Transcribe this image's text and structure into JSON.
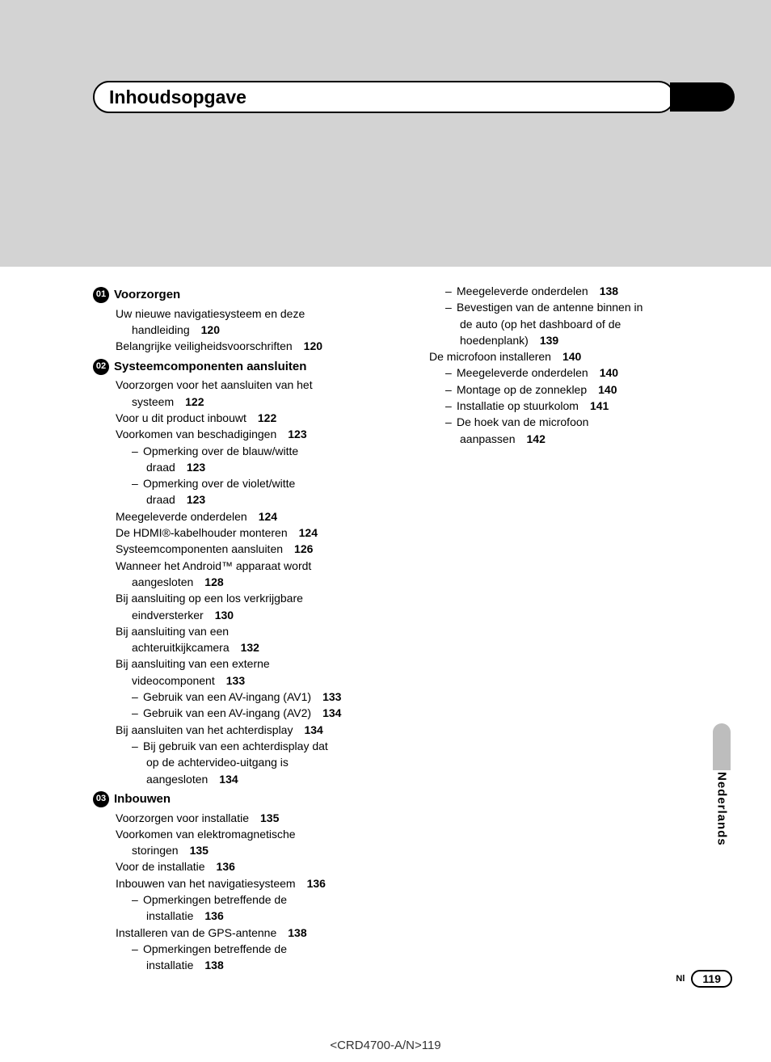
{
  "title": "Inhoudsopgave",
  "side_label": "Nederlands",
  "footer_lang": "Nl",
  "footer_page": "119",
  "doc_ref": "<CRD4700-A/N>119",
  "sections": [
    {
      "num": "01",
      "title": "Voorzorgen",
      "items": [
        {
          "t": "Uw nieuwe navigatiesysteem en deze",
          "cont": "handleiding",
          "p": "120"
        },
        {
          "t": "Belangrijke veiligheidsvoorschriften",
          "p": "120"
        }
      ]
    },
    {
      "num": "02",
      "title": "Systeemcomponenten aansluiten",
      "items": [
        {
          "t": "Voorzorgen voor het aansluiten van het",
          "cont": "systeem",
          "p": "122"
        },
        {
          "t": "Voor u dit product inbouwt",
          "p": "122"
        },
        {
          "t": "Voorkomen van beschadigingen",
          "p": "123"
        },
        {
          "sub": true,
          "t": "Opmerking over de blauw/witte",
          "cont": "draad",
          "p": "123"
        },
        {
          "sub": true,
          "t": "Opmerking over de violet/witte",
          "cont": "draad",
          "p": "123"
        },
        {
          "t": "Meegeleverde onderdelen",
          "p": "124"
        },
        {
          "t": "De HDMI®-kabelhouder monteren",
          "p": "124"
        },
        {
          "t": "Systeemcomponenten aansluiten",
          "p": "126"
        },
        {
          "t": "Wanneer het Android™ apparaat wordt",
          "cont": "aangesloten",
          "p": "128"
        },
        {
          "t": "Bij aansluiting op een los verkrijgbare",
          "cont": "eindversterker",
          "p": "130"
        },
        {
          "t": "Bij aansluiting van een",
          "cont": "achteruitkijkcamera",
          "p": "132"
        },
        {
          "t": "Bij aansluiting van een externe",
          "cont": "videocomponent",
          "p": "133"
        },
        {
          "sub": true,
          "t": "Gebruik van een AV-ingang (AV1)",
          "p": "133"
        },
        {
          "sub": true,
          "t": "Gebruik van een AV-ingang (AV2)",
          "p": "134"
        },
        {
          "t": "Bij aansluiten van het achterdisplay",
          "p": "134"
        },
        {
          "sub": true,
          "t": "Bij gebruik van een achterdisplay dat",
          "cont": "op de achtervideo-uitgang is",
          "cont2": "aangesloten",
          "p": "134"
        }
      ]
    },
    {
      "num": "03",
      "title": "Inbouwen",
      "items": [
        {
          "t": "Voorzorgen voor installatie",
          "p": "135"
        },
        {
          "t": "Voorkomen van elektromagnetische",
          "cont": "storingen",
          "p": "135"
        },
        {
          "t": "Voor de installatie",
          "p": "136"
        },
        {
          "t": "Inbouwen van het navigatiesysteem",
          "p": "136"
        },
        {
          "sub": true,
          "t": "Opmerkingen betreffende de",
          "cont": "installatie",
          "p": "136"
        },
        {
          "t": "Installeren van de GPS-antenne",
          "p": "138"
        },
        {
          "sub": true,
          "t": "Opmerkingen betreffende de",
          "cont": "installatie",
          "p": "138"
        }
      ]
    }
  ],
  "right_col": [
    {
      "sub": true,
      "t": "Meegeleverde onderdelen",
      "p": "138"
    },
    {
      "sub": true,
      "t": "Bevestigen van de antenne binnen in",
      "cont": "de auto (op het dashboard of de",
      "cont2": "hoedenplank)",
      "p": "139"
    },
    {
      "t": "De microfoon installeren",
      "p": "140"
    },
    {
      "sub": true,
      "t": "Meegeleverde onderdelen",
      "p": "140"
    },
    {
      "sub": true,
      "t": "Montage op de zonneklep",
      "p": "140"
    },
    {
      "sub": true,
      "t": "Installatie op stuurkolom",
      "p": "141"
    },
    {
      "sub": true,
      "t": "De hoek van de microfoon",
      "cont": "aanpassen",
      "p": "142"
    }
  ]
}
